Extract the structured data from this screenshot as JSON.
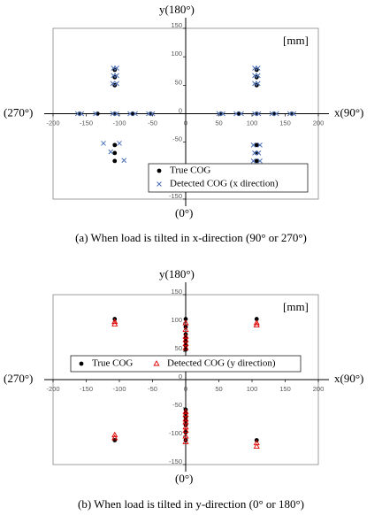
{
  "chart_data": [
    {
      "type": "scatter",
      "y_label": "y(180°)",
      "x_label": "x(90°)",
      "left_label": "(270°)",
      "bottom_label": "(0°)",
      "annotation": "[mm]",
      "caption": "(a) When load is tilted in x-direction (90° or 270°)",
      "xlim": [
        -200,
        200
      ],
      "ylim": [
        -150,
        150
      ],
      "xticks": [
        -200,
        -150,
        -100,
        -50,
        0,
        50,
        100,
        150,
        200
      ],
      "yticks": [
        -150,
        -100,
        -50,
        0,
        50,
        100,
        150
      ],
      "legend": "lower right",
      "series": [
        {
          "name": "True COG",
          "color": "#000000",
          "marker": "circle",
          "x": [
            -160,
            -133,
            -107,
            -80,
            -53,
            53,
            80,
            107,
            133,
            160,
            107,
            107,
            107,
            107,
            107,
            107,
            -107,
            -107,
            -107,
            -107,
            -107,
            -107
          ],
          "values": [
            0,
            0,
            0,
            0,
            0,
            0,
            0,
            0,
            0,
            0,
            77,
            64,
            50,
            -55,
            -69,
            -83,
            77,
            64,
            50,
            -55,
            -69,
            -83
          ]
        },
        {
          "name": "Detected COG (x direction)",
          "color": "#4a6fb5",
          "marker": "x",
          "x": [
            -163,
            -157,
            -136,
            -110,
            -104,
            -84,
            -76,
            -56,
            -50,
            50,
            56,
            76,
            84,
            104,
            110,
            130,
            137,
            157,
            163,
            104,
            109,
            104,
            109,
            104,
            109,
            102,
            112,
            104,
            110,
            102,
            112,
            -109,
            -104,
            -109,
            -104,
            -110,
            -104,
            -124,
            -100,
            -113,
            -93
          ],
          "values": [
            0,
            0,
            0,
            0,
            0,
            0,
            0,
            0,
            0,
            0,
            0,
            0,
            0,
            0,
            0,
            0,
            0,
            0,
            0,
            80,
            80,
            67,
            67,
            53,
            53,
            -55,
            -55,
            -69,
            -69,
            -83,
            -83,
            80,
            80,
            67,
            67,
            53,
            53,
            -52,
            -52,
            -67,
            -82
          ]
        }
      ]
    },
    {
      "type": "scatter",
      "y_label": "y(180°)",
      "x_label": "x(90°)",
      "left_label": "(270°)",
      "bottom_label": "(0°)",
      "annotation": "[mm]",
      "caption": "(b) When load is tilted in y-direction (0° or 180°)",
      "xlim": [
        -200,
        200
      ],
      "ylim": [
        -150,
        150
      ],
      "xticks": [
        -200,
        -150,
        -100,
        -50,
        0,
        50,
        100,
        150,
        200
      ],
      "yticks": [
        -150,
        -100,
        -50,
        0,
        50,
        100,
        150
      ],
      "legend": "upper center",
      "series": [
        {
          "name": "True  COG",
          "color": "#000000",
          "marker": "circle",
          "x": [
            -107,
            107,
            -107,
            107,
            0,
            0,
            0,
            0,
            0,
            0,
            0,
            0,
            0,
            0,
            0,
            0,
            0,
            0
          ],
          "values": [
            107,
            107,
            -107,
            -107,
            107,
            93,
            80,
            73,
            67,
            60,
            53,
            -53,
            -60,
            -67,
            -73,
            -80,
            -93,
            -107
          ]
        },
        {
          "name": "Detected COG (y direction)",
          "color": "#e00000",
          "marker": "triangle",
          "x": [
            -107,
            -107,
            107,
            107,
            -107,
            -107,
            107,
            107,
            0,
            0,
            0,
            0,
            0,
            0,
            0,
            0,
            0,
            0,
            0,
            0,
            0,
            0
          ],
          "values": [
            102,
            98,
            100,
            96,
            -98,
            -103,
            -112,
            -118,
            100,
            88,
            76,
            70,
            63,
            56,
            -57,
            -62,
            -70,
            -75,
            -84,
            -90,
            -100,
            -110
          ]
        }
      ]
    }
  ]
}
